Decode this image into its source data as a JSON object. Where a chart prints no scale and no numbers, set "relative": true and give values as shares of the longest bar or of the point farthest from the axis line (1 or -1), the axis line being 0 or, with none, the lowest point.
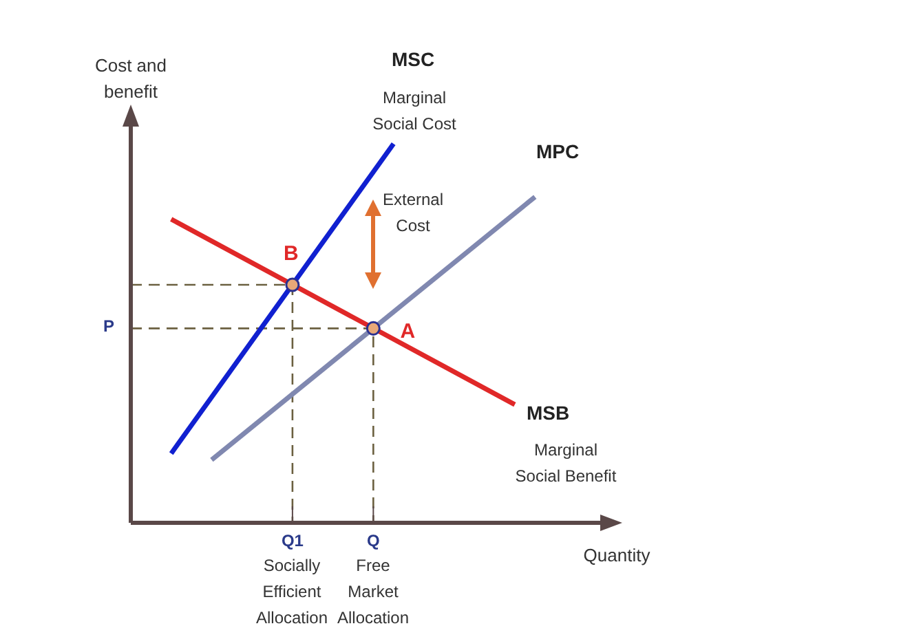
{
  "chart_data": {
    "type": "line",
    "relative": true,
    "xlabel": "Quantity",
    "ylabel": "Cost and\nbenefit",
    "tick_labels": "x",
    "grid": false,
    "legend": false,
    "marker": "none",
    "categories": [
      null,
      null,
      null,
      null,
      null,
      null,
      null,
      null,
      "Q1",
      null,
      null,
      null,
      "Q",
      null,
      null,
      null,
      null,
      null,
      null,
      null,
      null,
      null,
      null,
      null
    ],
    "series": [
      {
        "name": "MSC",
        "color": "#1020d0",
        "values": [
          null,
          null,
          0.183,
          null,
          null,
          null,
          null,
          null,
          null,
          null,
          null,
          null,
          null,
          1,
          null,
          null,
          null,
          null,
          null,
          null,
          null,
          null,
          null,
          null
        ]
      },
      {
        "name": "MPC",
        "color": "#8088b0",
        "values": [
          null,
          null,
          null,
          null,
          0.166,
          null,
          null,
          null,
          null,
          null,
          null,
          null,
          null,
          null,
          null,
          null,
          null,
          null,
          null,
          null,
          0.86,
          null,
          null,
          null
        ]
      },
      {
        "name": "MSB",
        "color": "#e02828",
        "values": [
          null,
          null,
          0.801,
          null,
          null,
          null,
          null,
          null,
          null,
          null,
          null,
          null,
          null,
          null,
          null,
          null,
          null,
          null,
          null,
          0.312,
          null,
          null,
          null,
          null
        ]
      },
      {
        "type": "scatter",
        "name": "B",
        "color": "#e8a878",
        "marker": "circle",
        "x": [
          "Q1"
        ],
        "values": [
          0.628
        ]
      },
      {
        "type": "scatter",
        "name": "A",
        "color": "#e8a878",
        "marker": "circle",
        "x": [
          "Q"
        ],
        "values": [
          0.513
        ]
      }
    ],
    "annotations": [
      "P",
      "Marginal\nSocial Cost",
      "Marginal\nSocial Benefit",
      "External\nCost",
      "Socially\nEfficient\nAllocation",
      "Free\nMarket\nAllocation"
    ]
  }
}
